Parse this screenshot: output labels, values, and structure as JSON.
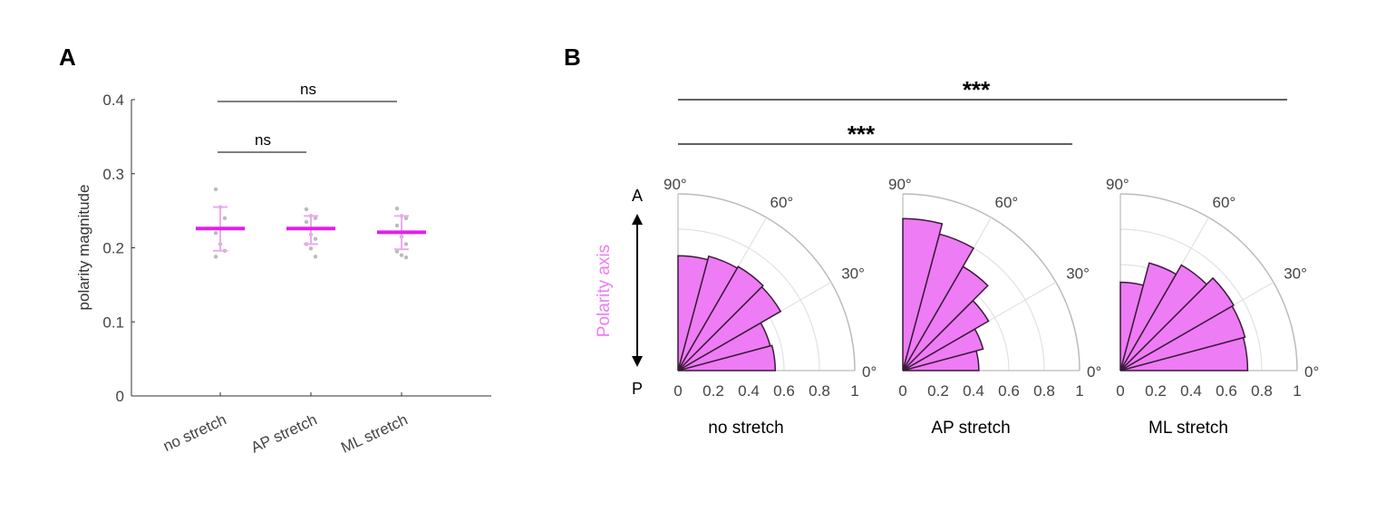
{
  "chart_data": [
    {
      "type": "scatter",
      "panel_label": "A",
      "ylabel": "polarity magnitude",
      "ylim": [
        0,
        0.4
      ],
      "yticks": [
        "0",
        "0.1",
        "0.2",
        "0.3",
        "0.4"
      ],
      "categories": [
        "no stretch",
        "AP stretch",
        "ML stretch"
      ],
      "means": [
        0.226,
        0.226,
        0.221
      ],
      "err_low": [
        0.196,
        0.205,
        0.198
      ],
      "err_high": [
        0.255,
        0.243,
        0.243
      ],
      "points": [
        [
          0.279,
          0.255,
          0.24,
          0.22,
          0.205,
          0.196,
          0.188
        ],
        [
          0.252,
          0.243,
          0.24,
          0.235,
          0.218,
          0.212,
          0.205,
          0.199,
          0.188
        ],
        [
          0.253,
          0.243,
          0.24,
          0.23,
          0.215,
          0.205,
          0.195,
          0.19,
          0.187
        ]
      ],
      "significance": [
        {
          "from": 0,
          "to": 2,
          "label": "ns"
        },
        {
          "from": 0,
          "to": 1,
          "label": "ns"
        }
      ],
      "colors": {
        "mean": "#e020e8",
        "error": "#eeaaf0",
        "points": "#bbbbbb"
      }
    },
    {
      "type": "polar-histogram",
      "panel_label": "B",
      "axis_label": "Polarity axis",
      "axis_ends": [
        "A",
        "P"
      ],
      "angle_labels": [
        "0°",
        "30°",
        "60°",
        "90°"
      ],
      "rticks": [
        "0",
        "0.2",
        "0.4",
        "0.6",
        "0.8",
        "1"
      ],
      "bin_edges_deg": [
        0,
        15,
        30,
        45,
        60,
        75,
        90
      ],
      "series": [
        {
          "name": "no stretch",
          "values": [
            0.55,
            0.54,
            0.67,
            0.68,
            0.67,
            0.65
          ]
        },
        {
          "name": "AP stretch",
          "values": [
            0.43,
            0.47,
            0.56,
            0.68,
            0.8,
            0.86
          ]
        },
        {
          "name": "ML stretch",
          "values": [
            0.72,
            0.73,
            0.74,
            0.69,
            0.63,
            0.5
          ]
        }
      ],
      "significance": [
        {
          "from": 0,
          "to": 2,
          "label": "***"
        },
        {
          "from": 0,
          "to": 1,
          "label": "***"
        }
      ],
      "colors": {
        "fill": "#ee7cf4",
        "edge": "#3a1a3a",
        "axis_label": "#ee7cf4"
      }
    }
  ]
}
